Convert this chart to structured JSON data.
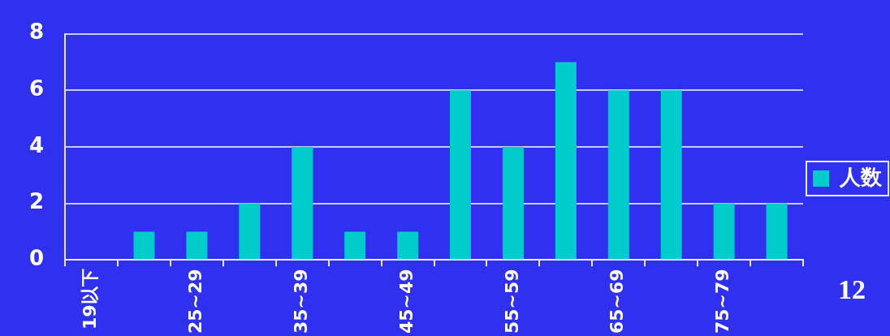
{
  "chart_data": {
    "type": "bar",
    "categories": [
      "19以下",
      null,
      "25~29",
      null,
      "35~39",
      null,
      "45~49",
      null,
      "55~59",
      null,
      "65~69",
      null,
      "75~79",
      null
    ],
    "series": [
      {
        "name": "人数",
        "color": "#00cccc",
        "values": [
          0,
          1,
          1,
          2,
          4,
          1,
          1,
          6,
          4,
          7,
          6,
          6,
          2,
          2
        ]
      }
    ],
    "ylim": [
      0,
      8
    ],
    "yticks": [
      0,
      2,
      4,
      6,
      8
    ],
    "grid": "y",
    "legend": "right",
    "annotations": [
      "12"
    ]
  }
}
